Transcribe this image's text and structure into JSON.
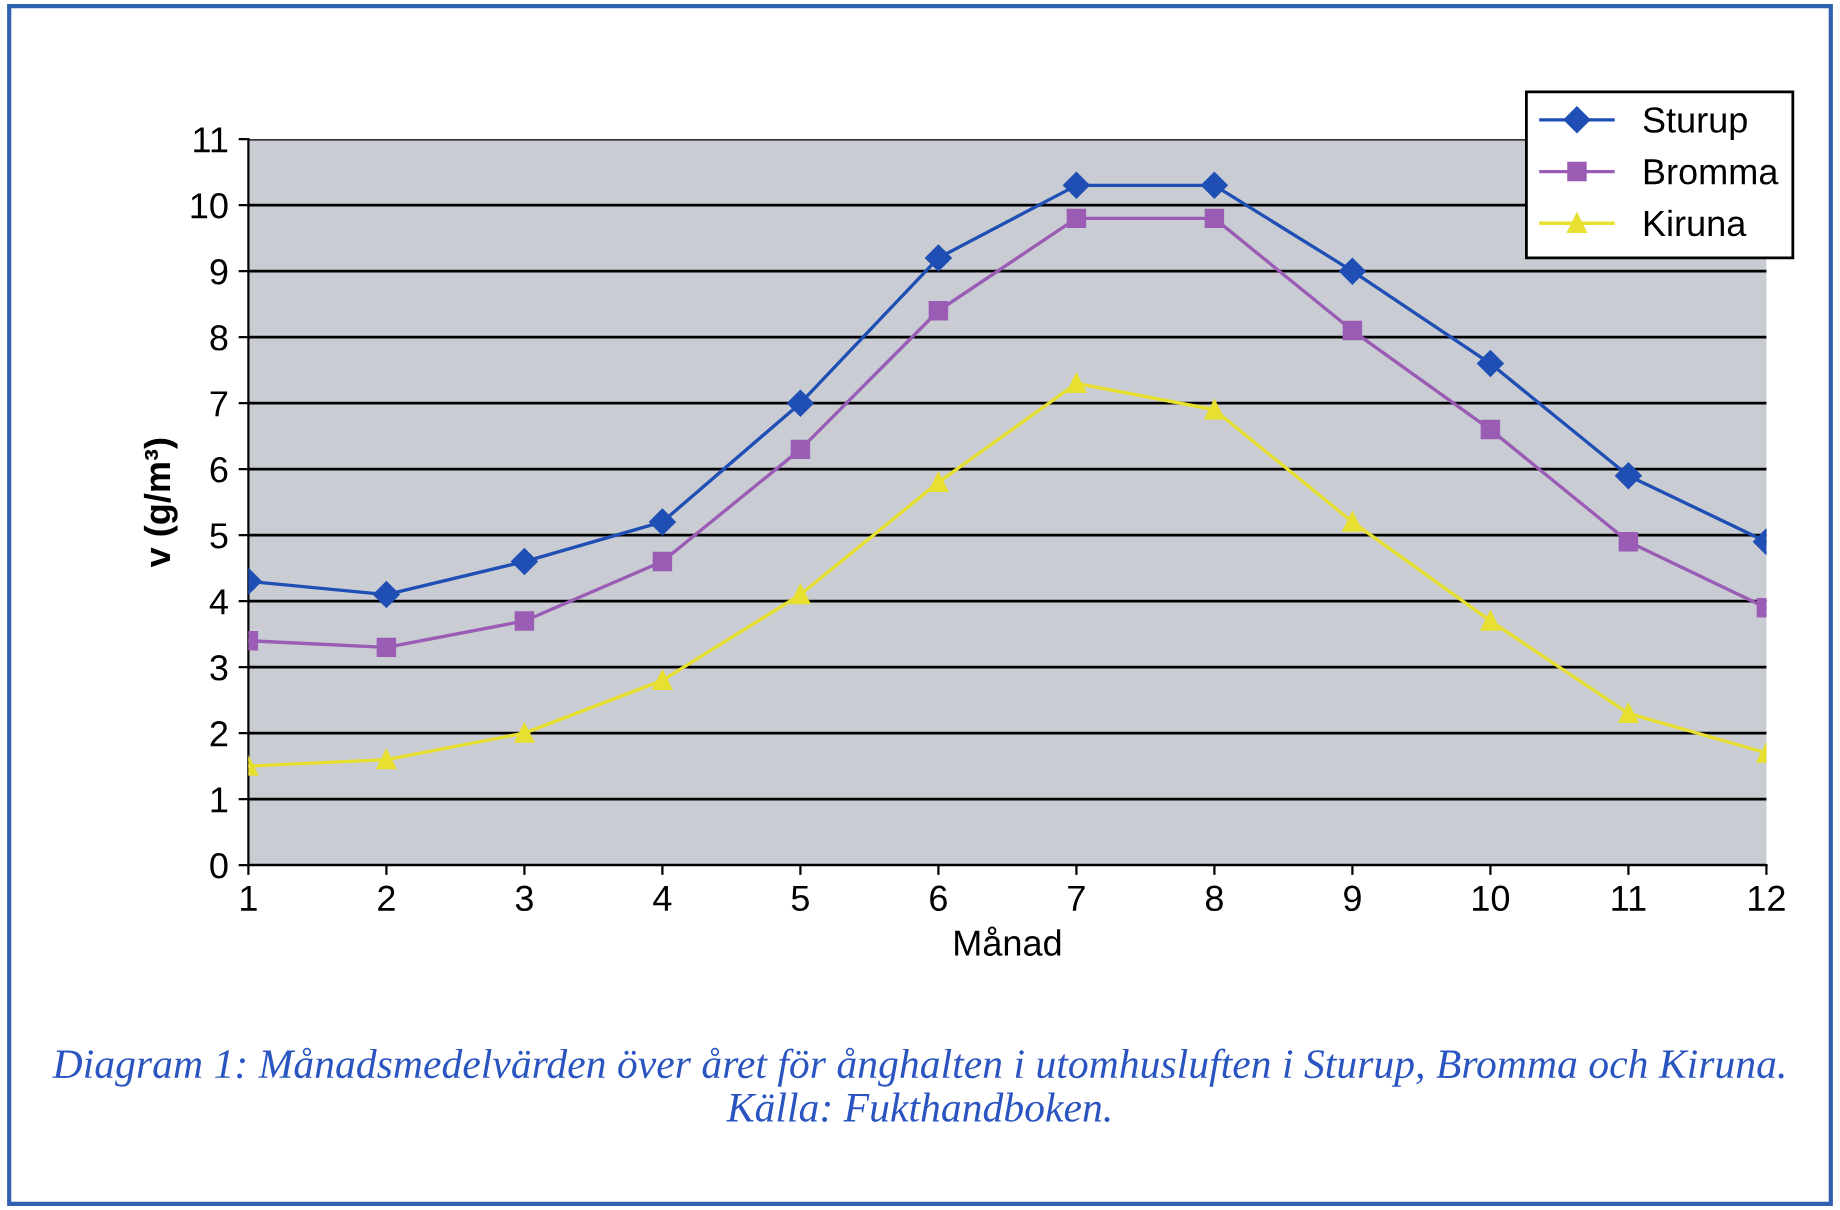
{
  "chart_data": {
    "type": "line",
    "xlabel": "Månad",
    "ylabel": "v (g/m³)",
    "x": [
      1,
      2,
      3,
      4,
      5,
      6,
      7,
      8,
      9,
      10,
      11,
      12
    ],
    "series": [
      {
        "name": "Sturup",
        "color": "#1f4fb4",
        "marker": "diamond",
        "values": [
          4.3,
          4.1,
          4.6,
          5.2,
          7.0,
          9.2,
          10.3,
          10.3,
          9.0,
          7.6,
          5.9,
          4.9
        ]
      },
      {
        "name": "Bromma",
        "color": "#9a5cb4",
        "marker": "square",
        "values": [
          3.4,
          3.3,
          3.7,
          4.6,
          6.3,
          8.4,
          9.8,
          9.8,
          8.1,
          6.6,
          4.9,
          3.9
        ]
      },
      {
        "name": "Kiruna",
        "color": "#e8e030",
        "marker": "triangle",
        "values": [
          1.5,
          1.6,
          2.0,
          2.8,
          4.1,
          5.8,
          7.3,
          6.9,
          5.2,
          3.7,
          2.3,
          1.7
        ]
      }
    ],
    "xlim": [
      1,
      12
    ],
    "xticks": [
      1,
      2,
      3,
      4,
      5,
      6,
      7,
      8,
      9,
      10,
      11,
      12
    ],
    "ylim": [
      0,
      11
    ],
    "yticks": [
      0,
      1,
      2,
      3,
      4,
      5,
      6,
      7,
      8,
      9,
      10,
      11
    ],
    "grid": "y",
    "legend": "top right",
    "line_style": "solid",
    "annotations": [
      "Diagram 1: Månadsmedelvärden över året för ånghalten i utomhusluften i Sturup, Bromma och Kiruna. Källa: Fukthandboken."
    ]
  }
}
